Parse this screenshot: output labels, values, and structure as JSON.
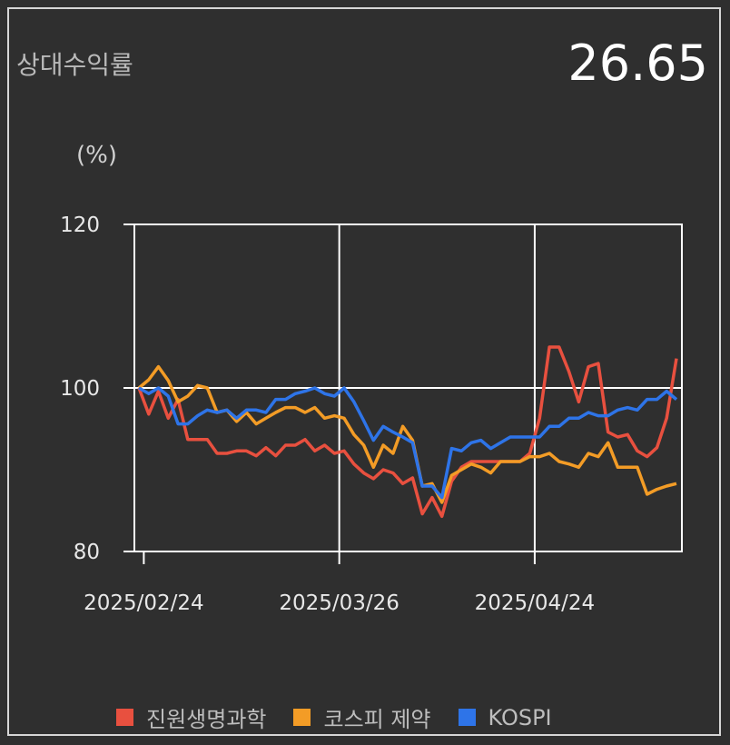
{
  "header": {
    "title": "상대수익률",
    "value": "26.65",
    "unit": "(%)"
  },
  "chart_data": {
    "type": "line",
    "ylim": [
      80,
      120
    ],
    "yticks": [
      80,
      100,
      120
    ],
    "x_tick_labels": [
      "2025/02/24",
      "2025/03/26",
      "2025/04/24"
    ],
    "x_tick_positions": [
      0.5,
      20.5,
      40.5
    ],
    "x_count": 56,
    "grid": true,
    "legend_position": "bottom",
    "series": [
      {
        "name": "진원생명과학",
        "color": "#e8503f",
        "values": [
          100,
          96.8,
          99.6,
          96.3,
          98.6,
          93.7,
          93.7,
          93.7,
          92.0,
          92.0,
          92.3,
          92.3,
          91.7,
          92.7,
          91.7,
          93.0,
          93.0,
          93.7,
          92.3,
          93.0,
          92.0,
          92.3,
          90.7,
          89.6,
          88.9,
          90.0,
          89.6,
          88.3,
          89.0,
          84.6,
          86.6,
          84.3,
          88.6,
          90.3,
          91.0,
          91.0,
          91.0,
          91.0,
          91.0,
          91.0,
          92.0,
          96.3,
          105.0,
          105.0,
          102.0,
          98.3,
          102.6,
          103.0,
          94.6,
          94.0,
          94.3,
          92.3,
          91.6,
          92.7,
          96.3,
          103.6
        ]
      },
      {
        "name": "코스피 제약",
        "color": "#f39c26",
        "values": [
          100,
          101.0,
          102.6,
          100.9,
          98.3,
          99.0,
          100.3,
          100.0,
          97.0,
          97.3,
          95.9,
          97.0,
          95.6,
          96.3,
          97.0,
          97.6,
          97.6,
          97.0,
          97.6,
          96.3,
          96.6,
          96.3,
          94.3,
          93.0,
          90.3,
          93.0,
          92.0,
          95.3,
          93.6,
          88.0,
          88.3,
          86.0,
          89.3,
          90.0,
          90.7,
          90.3,
          89.6,
          91.0,
          91.0,
          91.0,
          91.6,
          91.6,
          92.0,
          91.0,
          90.7,
          90.3,
          92.0,
          91.6,
          93.3,
          90.3,
          90.3,
          90.3,
          87.0,
          87.6,
          88.0,
          88.3
        ]
      },
      {
        "name": "KOSPI",
        "color": "#2e74e8",
        "values": [
          100,
          99.3,
          100.0,
          99.0,
          95.6,
          95.6,
          96.6,
          97.3,
          97.0,
          97.3,
          96.3,
          97.3,
          97.3,
          97.0,
          98.6,
          98.6,
          99.3,
          99.6,
          100.0,
          99.3,
          99.0,
          100.0,
          98.3,
          96.0,
          93.6,
          95.3,
          94.6,
          94.0,
          93.3,
          88.0,
          88.0,
          86.6,
          92.6,
          92.3,
          93.3,
          93.6,
          92.6,
          93.3,
          94.0,
          94.0,
          94.0,
          94.0,
          95.3,
          95.3,
          96.3,
          96.3,
          97.0,
          96.6,
          96.6,
          97.3,
          97.6,
          97.3,
          98.6,
          98.6,
          99.6,
          98.6
        ]
      }
    ]
  }
}
